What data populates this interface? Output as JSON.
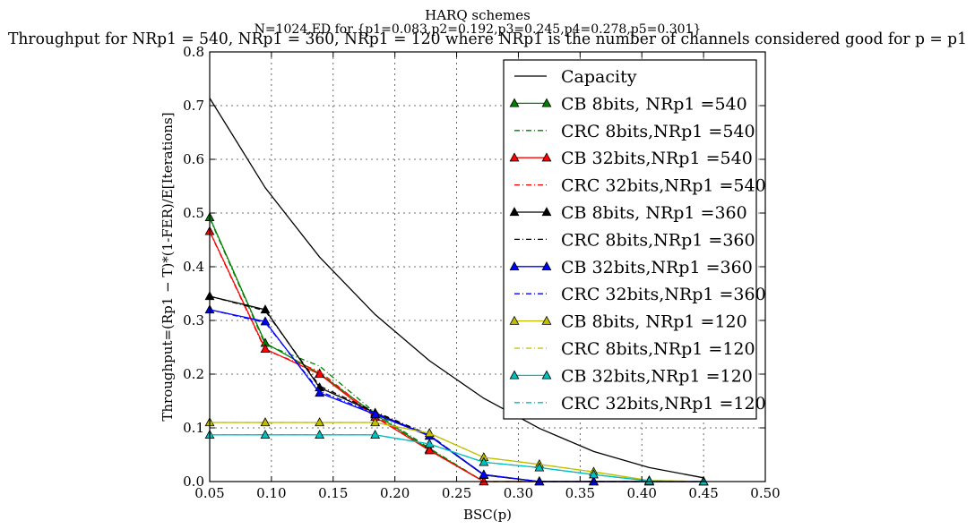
{
  "chart_data": {
    "type": "line",
    "figure_title": "HARQ schemes",
    "subtitle": "N=1024,ED for {p1=0.083,p2=0.192,p3=0.245,p4=0.278,p5=0.301}",
    "title": "Throughput for NRp1 = 540, NRp1 = 360, NRp1 = 120 where NRp1 is the number of channels considered good for p = p1",
    "xlabel": "BSC(p)",
    "ylabel": "Throughput=(Rp1 − T)*(1-FER)/E[Iterations]",
    "xlim": [
      0.05,
      0.5
    ],
    "ylim": [
      0.0,
      0.8
    ],
    "xticks": [
      "0.05",
      "0.10",
      "0.15",
      "0.20",
      "0.25",
      "0.30",
      "0.35",
      "0.40",
      "0.45",
      "0.50"
    ],
    "yticks": [
      "0.0",
      "0.1",
      "0.2",
      "0.3",
      "0.4",
      "0.5",
      "0.6",
      "0.7",
      "0.8"
    ],
    "grid": true,
    "legend_position": "upper-right",
    "x": [
      0.05,
      0.095,
      0.139,
      0.184,
      0.228,
      0.272,
      0.317,
      0.361,
      0.406,
      0.45
    ],
    "series": [
      {
        "name": "Capacity",
        "color": "#000000",
        "dash": "solid",
        "marker": "none",
        "values": [
          0.714,
          0.547,
          0.418,
          0.311,
          0.225,
          0.155,
          0.099,
          0.056,
          0.026,
          0.007
        ]
      },
      {
        "name": "CB 8bits, NRp1 =540",
        "color": "#008000",
        "dash": "solid",
        "marker": "triangle",
        "values": [
          0.492,
          0.258,
          0.201,
          0.125,
          0.06,
          0.0,
          0.0,
          0.0,
          0.0,
          0.0
        ]
      },
      {
        "name": "CRC 8bits,NRp1 =540",
        "color": "#008000",
        "dash": "dashdot",
        "marker": "none",
        "values": [
          0.49,
          0.255,
          0.215,
          0.128,
          0.062,
          0.0,
          0.0,
          0.0,
          0.0,
          0.0
        ]
      },
      {
        "name": "CB 32bits,NRp1 =540",
        "color": "#ff0000",
        "dash": "solid",
        "marker": "triangle",
        "values": [
          0.466,
          0.247,
          0.2,
          0.12,
          0.058,
          0.0,
          0.0,
          0.0,
          0.0,
          0.0
        ]
      },
      {
        "name": "CRC 32bits,NRp1 =540",
        "color": "#ff0000",
        "dash": "dashdot",
        "marker": "none",
        "values": [
          0.465,
          0.245,
          0.205,
          0.122,
          0.058,
          0.0,
          0.0,
          0.0,
          0.0,
          0.0
        ]
      },
      {
        "name": "CB 8bits, NRp1 =360",
        "color": "#000000",
        "dash": "solid",
        "marker": "triangle",
        "values": [
          0.345,
          0.32,
          0.175,
          0.128,
          0.085,
          0.012,
          0.0,
          0.0,
          0.0,
          0.0
        ]
      },
      {
        "name": "CRC 8bits,NRp1 =360",
        "color": "#000000",
        "dash": "dashdot",
        "marker": "none",
        "values": [
          0.345,
          0.318,
          0.178,
          0.13,
          0.087,
          0.012,
          0.0,
          0.0,
          0.0,
          0.0
        ]
      },
      {
        "name": "CB 32bits,NRp1 =360",
        "color": "#0000ff",
        "dash": "solid",
        "marker": "triangle",
        "values": [
          0.32,
          0.298,
          0.165,
          0.125,
          0.085,
          0.013,
          0.0,
          0.0,
          0.0,
          0.0
        ]
      },
      {
        "name": "CRC 32bits,NRp1 =360",
        "color": "#0000ff",
        "dash": "dashdot",
        "marker": "none",
        "values": [
          0.32,
          0.296,
          0.168,
          0.127,
          0.086,
          0.013,
          0.0,
          0.0,
          0.0,
          0.0
        ]
      },
      {
        "name": "CB 8bits, NRp1 =120",
        "color": "#bfbf00",
        "dash": "solid",
        "marker": "triangle",
        "values": [
          0.11,
          0.11,
          0.11,
          0.11,
          0.09,
          0.045,
          0.032,
          0.018,
          0.002,
          0.0
        ]
      },
      {
        "name": "CRC 8bits,NRp1 =120",
        "color": "#bfbf00",
        "dash": "dashdot",
        "marker": "none",
        "values": [
          0.11,
          0.11,
          0.11,
          0.11,
          0.09,
          0.045,
          0.032,
          0.018,
          0.002,
          0.0
        ]
      },
      {
        "name": "CB 32bits,NRp1 =120",
        "color": "#00bfbf",
        "dash": "solid",
        "marker": "triangle",
        "values": [
          0.087,
          0.087,
          0.087,
          0.087,
          0.07,
          0.036,
          0.026,
          0.013,
          0.001,
          0.0
        ]
      },
      {
        "name": "CRC 32bits,NRp1 =120",
        "color": "#00bfbf",
        "dash": "dashdot",
        "marker": "none",
        "values": [
          0.087,
          0.087,
          0.087,
          0.087,
          0.07,
          0.036,
          0.026,
          0.013,
          0.001,
          0.0
        ]
      }
    ]
  }
}
